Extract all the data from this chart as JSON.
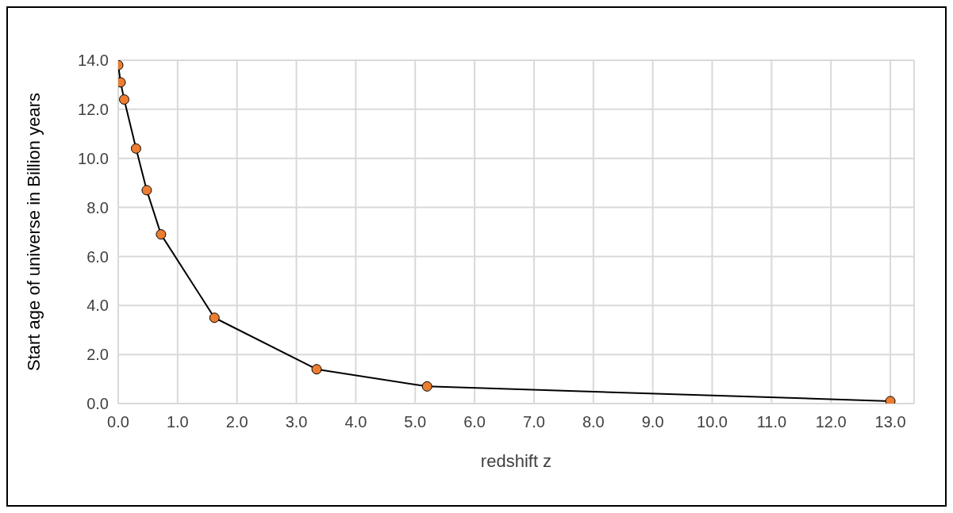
{
  "chart_data": {
    "type": "line",
    "xlabel": "redshift z",
    "ylabel": "Start age of universe in Billion years",
    "x": [
      0.0,
      0.04,
      0.1,
      0.3,
      0.48,
      0.72,
      1.62,
      3.34,
      5.2,
      13.0
    ],
    "series": [
      {
        "color": "#000000",
        "colors": [
          "#ed7d31",
          "#ed7d31",
          "#ed7d31",
          "#ed7d31",
          "#ed7d31",
          "#ed7d31",
          "#ed7d31",
          "#ed7d31",
          "#ed7d31",
          "#ed7d31"
        ],
        "values": [
          13.8,
          13.1,
          12.4,
          10.4,
          8.7,
          6.9,
          3.5,
          1.4,
          0.7,
          0.1
        ]
      }
    ],
    "marker": "circle",
    "line_style": "solid",
    "grid": true,
    "xlim": [
      0,
      13.4
    ],
    "xticks": [
      {
        "value": 0,
        "label": "0.0"
      },
      {
        "value": 1,
        "label": "1.0"
      },
      {
        "value": 2,
        "label": "2.0"
      },
      {
        "value": 3,
        "label": "3.0"
      },
      {
        "value": 4,
        "label": "4.0"
      },
      {
        "value": 5,
        "label": "5.0"
      },
      {
        "value": 6,
        "label": "6.0"
      },
      {
        "value": 7,
        "label": "7.0"
      },
      {
        "value": 8,
        "label": "8.0"
      },
      {
        "value": 9,
        "label": "9.0"
      },
      {
        "value": 10,
        "label": "10.0"
      },
      {
        "value": 11,
        "label": "11.0"
      },
      {
        "value": 12,
        "label": "12.0"
      },
      {
        "value": 13,
        "label": "13.0"
      }
    ],
    "ylim": [
      0,
      14
    ],
    "yticks": [
      {
        "value": 0,
        "label": "0.0"
      },
      {
        "value": 2,
        "label": "2.0"
      },
      {
        "value": 4,
        "label": "4.0"
      },
      {
        "value": 6,
        "label": "6.0"
      },
      {
        "value": 8,
        "label": "8.0"
      },
      {
        "value": 10,
        "label": "10.0"
      },
      {
        "value": 12,
        "label": "12.0"
      },
      {
        "value": 14,
        "label": "14.0"
      }
    ]
  }
}
